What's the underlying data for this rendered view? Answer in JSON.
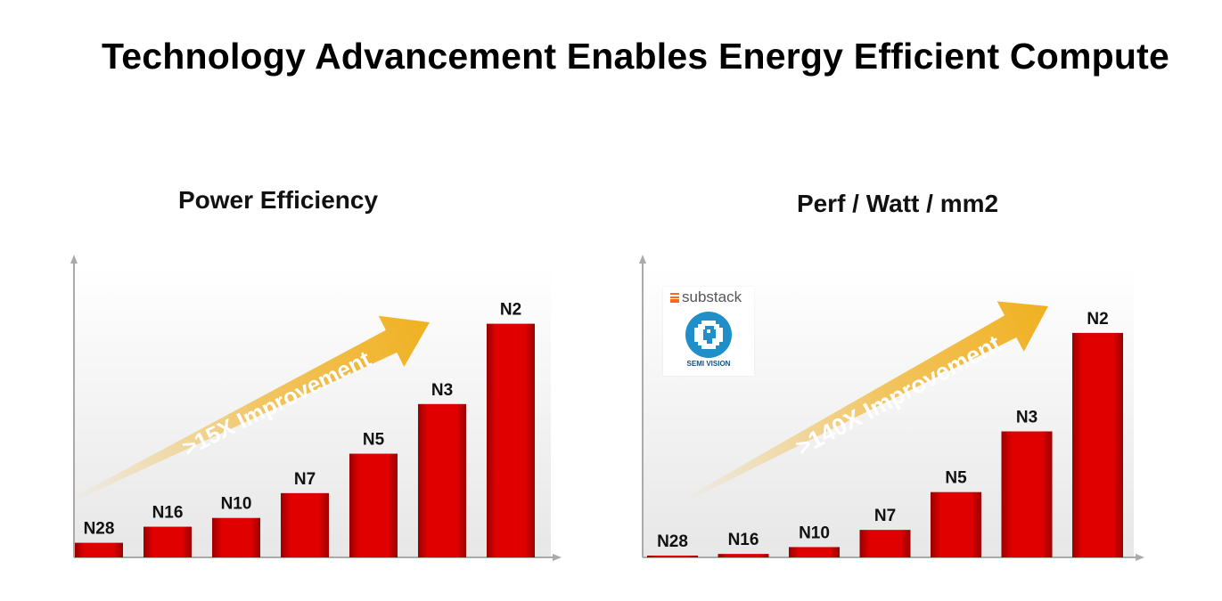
{
  "page": {
    "title": "Technology Advancement Enables Energy Efficient Compute"
  },
  "logo": {
    "brand": "substack",
    "caption": "SEMI VISION"
  },
  "chart_data": [
    {
      "type": "bar",
      "title": "Power Efficiency",
      "categories": [
        "N28",
        "N16",
        "N10",
        "N7",
        "N5",
        "N3",
        "N2"
      ],
      "values": [
        1,
        2.1,
        2.7,
        4.4,
        7.1,
        10.5,
        16
      ],
      "annotation": ">15X Improvement",
      "xlabel": "",
      "ylabel": "",
      "ylim": [
        0,
        20
      ],
      "colors": {
        "bar": "#e00000",
        "bar_dark": "#9a0000",
        "arrow": "#f0b020"
      }
    },
    {
      "type": "bar",
      "title": "Perf / Watt / mm2",
      "categories": [
        "N28",
        "N16",
        "N10",
        "N7",
        "N5",
        "N3",
        "N2"
      ],
      "values": [
        1,
        3,
        9,
        24,
        57,
        110,
        196
      ],
      "annotation": ">140X Improvement",
      "xlabel": "",
      "ylabel": "",
      "ylim": [
        0,
        255
      ],
      "colors": {
        "bar": "#e00000",
        "bar_dark": "#9a0000",
        "arrow": "#f0b020"
      }
    }
  ]
}
